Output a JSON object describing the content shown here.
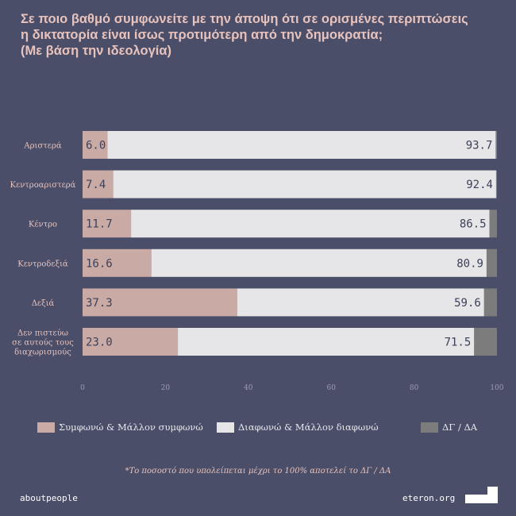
{
  "header": {
    "title_lines": [
      "Σε ποιο βαθμό συμφωνείτε με την άποψη ότι σε ορισμένες περιπτώσεις",
      "η δικτατορία είναι ίσως προτιμότερη από την δημοκρατία;",
      "(Με βάση την ιδεολογία)"
    ]
  },
  "chart_data": {
    "type": "bar",
    "orientation": "horizontal",
    "stacked": true,
    "categories": [
      [
        "Αριστερά"
      ],
      [
        "Κεντροαριστερά"
      ],
      [
        "Κέντρο"
      ],
      [
        "Κεντροδεξιά"
      ],
      [
        "Δεξιά"
      ],
      [
        "Δεν πιστεύω",
        "σε αυτούς τους",
        "διαχωρισμούς"
      ]
    ],
    "series": [
      {
        "name": "Συμφωνώ & Μάλλον συμφωνώ",
        "color": "#c9aaa5",
        "values": [
          6.0,
          7.4,
          11.7,
          16.6,
          37.3,
          23.0
        ]
      },
      {
        "name": "Διαφωνώ & Μάλλον διαφωνώ",
        "color": "#e6e6e8",
        "values": [
          93.7,
          92.4,
          86.5,
          80.9,
          59.6,
          71.5
        ]
      },
      {
        "name": "ΔΓ / ΔΑ",
        "color": "#7c7c7c",
        "values": [
          0.3,
          0.2,
          1.8,
          2.5,
          3.1,
          5.5
        ]
      }
    ],
    "value_labels": {
      "agree": [
        "6.0",
        "7.4",
        "11.7",
        "16.6",
        "37.3",
        "23.0"
      ],
      "disagree": [
        "93.7",
        "92.4",
        "86.5",
        "80.9",
        "59.6",
        "71.5"
      ]
    },
    "xlim": [
      0,
      100
    ],
    "xticks": [
      0,
      20,
      40,
      60,
      80,
      100
    ],
    "legend_position": "bottom"
  },
  "legend": {
    "agree": "Συμφωνώ & Μάλλον συμφωνώ",
    "disagree": "Διαφωνώ & Μάλλον διαφωνώ",
    "dk": "ΔΓ / ΔΑ"
  },
  "footnote": "*Το ποσοστό που υπολείπεται μέχρι το 100% αποτελεί το ΔΓ / ΔΑ",
  "branding": {
    "left": "aboutpeople",
    "right": "eteron.org"
  },
  "colors": {
    "background": "#4a4e69",
    "agree": "#c9aaa5",
    "disagree": "#e6e6e8",
    "dk": "#7c7c7c",
    "title": "#e8c3bd"
  }
}
